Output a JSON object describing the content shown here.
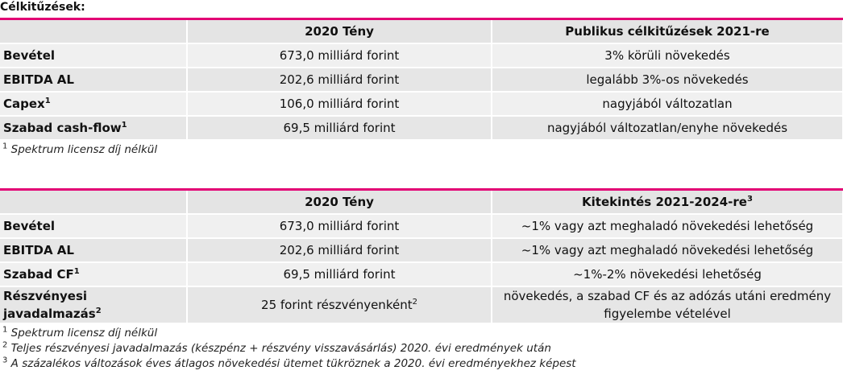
{
  "title": "Célkitűzések:",
  "tables": [
    {
      "header": {
        "actual": "2020 Tény",
        "target": "Publikus célkitűzések 2021-re"
      },
      "rows": [
        {
          "label": "Bevétel",
          "actual": "673,0 milliárd forint",
          "target": "3% körüli növekedés"
        },
        {
          "label": "EBITDA AL",
          "actual": "202,6 milliárd forint",
          "target": "legalább 3%-os növekedés"
        },
        {
          "label": "Capex",
          "label_sup": "1",
          "actual": "106,0 milliárd forint",
          "target": "nagyjából változatlan"
        },
        {
          "label": "Szabad cash-flow",
          "label_sup": "1",
          "actual": "69,5 milliárd forint",
          "target": "nagyjából változatlan/enyhe növekedés"
        }
      ],
      "footnotes": [
        {
          "mark": "1",
          "text": "Spektrum licensz díj nélkül"
        }
      ]
    },
    {
      "header": {
        "actual": "2020 Tény",
        "target": "Kitekintés 2021-2024-re",
        "target_sup": "3"
      },
      "rows": [
        {
          "label": "Bevétel",
          "actual": "673,0 milliárd forint",
          "target": "~1% vagy azt meghaladó növekedési lehetőség"
        },
        {
          "label": "EBITDA AL",
          "actual": "202,6 milliárd forint",
          "target": "~1% vagy azt meghaladó növekedési lehetőség"
        },
        {
          "label": "Szabad CF",
          "label_sup": "1",
          "actual": "69,5 milliárd forint",
          "target": "~1%-2% növekedési lehetőség"
        },
        {
          "label": "Részvényesi javadalmazás",
          "label_sup": "2",
          "actual": "25 forint részvényenként",
          "actual_sup": "2",
          "target": "növekedés, a szabad CF és az adózás utáni eredmény figyelembe vételével"
        }
      ],
      "footnotes": [
        {
          "mark": "1",
          "text": "Spektrum licensz díj nélkül"
        },
        {
          "mark": "2",
          "text": "Teljes részvényesi javadalmazás (készpénz + részvény visszavásárlás) 2020. évi eredmények után"
        },
        {
          "mark": "3",
          "text": "A százalékos változások éves átlagos növekedési ütemet tükröznek a 2020. évi eredményekhez képest"
        }
      ]
    }
  ]
}
